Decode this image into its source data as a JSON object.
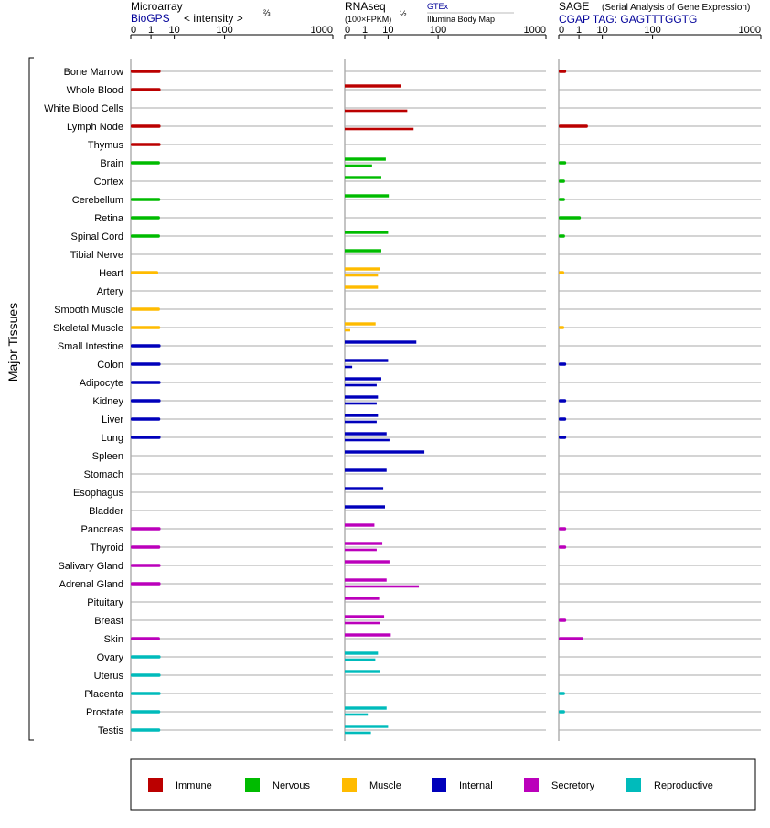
{
  "panels": {
    "microarray": {
      "title": "Microarray",
      "source": "BioGPS",
      "scale_label": "< intensity >",
      "scale_exponent": "⅔"
    },
    "rnaseq": {
      "title": "RNAseq",
      "scale_label": "(100×FPKM)",
      "scale_exponent": "½",
      "source_1": "GTEx",
      "source_2": "Illumina Body Map"
    },
    "sage": {
      "title": "SAGE",
      "subtitle": "(Serial Analysis of Gene Expression)",
      "tag": "CGAP TAG: GAGTTTGGTG"
    }
  },
  "y_axis_label": "Major Tissues",
  "colors": {
    "Immune": "#bb0000",
    "Nervous": "#00bb00",
    "Muscle": "#ffbb00",
    "Internal": "#0000bb",
    "Secretory": "#bb00bb",
    "Reproductive": "#00bbbb"
  },
  "legend": [
    "Immune",
    "Nervous",
    "Muscle",
    "Internal",
    "Secretory",
    "Reproductive"
  ],
  "chart_data": {
    "type": "bar",
    "orientation": "horizontal",
    "x_scale": "power",
    "x_ticks": [
      "0",
      "1",
      "10",
      "100",
      "1000"
    ],
    "xlim": [
      0,
      1000
    ],
    "tissues": [
      {
        "name": "Bone Marrow",
        "group": "Immune",
        "microarray": 3.2,
        "gtex": null,
        "ibm": null,
        "sage": 0.05
      },
      {
        "name": "Whole Blood",
        "group": "Immune",
        "microarray": 3.2,
        "gtex": 22,
        "ibm": null,
        "sage": null
      },
      {
        "name": "White Blood Cells",
        "group": "Immune",
        "microarray": null,
        "gtex": null,
        "ibm": 30,
        "sage": null
      },
      {
        "name": "Lymph Node",
        "group": "Immune",
        "microarray": 3.2,
        "gtex": null,
        "ibm": 40,
        "sage": 3
      },
      {
        "name": "Thymus",
        "group": "Immune",
        "microarray": 3.2,
        "gtex": null,
        "ibm": null,
        "sage": null
      },
      {
        "name": "Brain",
        "group": "Nervous",
        "microarray": 3.0,
        "gtex": 8.5,
        "ibm": 2.5,
        "sage": 0.05
      },
      {
        "name": "Cortex",
        "group": "Nervous",
        "microarray": null,
        "gtex": 6,
        "ibm": null,
        "sage": 0.03
      },
      {
        "name": "Cerebellum",
        "group": "Nervous",
        "microarray": 3.1,
        "gtex": 10.5,
        "ibm": null,
        "sage": 0.03
      },
      {
        "name": "Retina",
        "group": "Nervous",
        "microarray": 3.0,
        "gtex": null,
        "ibm": null,
        "sage": 1.3
      },
      {
        "name": "Spinal Cord",
        "group": "Nervous",
        "microarray": 3.0,
        "gtex": 10,
        "ibm": null,
        "sage": 0.03
      },
      {
        "name": "Tibial Nerve",
        "group": "Nervous",
        "microarray": null,
        "gtex": 6,
        "ibm": null,
        "sage": null
      },
      {
        "name": "Heart",
        "group": "Muscle",
        "microarray": 2.5,
        "gtex": 5.5,
        "ibm": 4.5,
        "sage": 0.02
      },
      {
        "name": "Artery",
        "group": "Muscle",
        "microarray": null,
        "gtex": 4.5,
        "ibm": null,
        "sage": null
      },
      {
        "name": "Smooth Muscle",
        "group": "Muscle",
        "microarray": 3.0,
        "gtex": null,
        "ibm": null,
        "sage": null
      },
      {
        "name": "Skeletal Muscle",
        "group": "Muscle",
        "microarray": 3.1,
        "gtex": 3.6,
        "ibm": 0.02,
        "sage": 0.02
      },
      {
        "name": "Small Intestine",
        "group": "Internal",
        "microarray": 3.2,
        "gtex": 45,
        "ibm": null,
        "sage": null
      },
      {
        "name": "Colon",
        "group": "Internal",
        "microarray": 3.2,
        "gtex": 10,
        "ibm": 0.05,
        "sage": 0.05
      },
      {
        "name": "Adipocyte",
        "group": "Internal",
        "microarray": 3.2,
        "gtex": 6,
        "ibm": 4,
        "sage": null
      },
      {
        "name": "Kidney",
        "group": "Internal",
        "microarray": 3.2,
        "gtex": 4.5,
        "ibm": 4,
        "sage": 0.05
      },
      {
        "name": "Liver",
        "group": "Internal",
        "microarray": 3.1,
        "gtex": 4.5,
        "ibm": 4,
        "sage": 0.05
      },
      {
        "name": "Lung",
        "group": "Internal",
        "microarray": 3.2,
        "gtex": 9,
        "ibm": 11,
        "sage": 0.05
      },
      {
        "name": "Spleen",
        "group": "Internal",
        "microarray": null,
        "gtex": 62,
        "ibm": null,
        "sage": null
      },
      {
        "name": "Stomach",
        "group": "Internal",
        "microarray": null,
        "gtex": 9,
        "ibm": null,
        "sage": null
      },
      {
        "name": "Esophagus",
        "group": "Internal",
        "microarray": null,
        "gtex": 7,
        "ibm": null,
        "sage": null
      },
      {
        "name": "Bladder",
        "group": "Internal",
        "microarray": null,
        "gtex": 8,
        "ibm": null,
        "sage": null
      },
      {
        "name": "Pancreas",
        "group": "Secretory",
        "microarray": 3.2,
        "gtex": 3.2,
        "ibm": null,
        "sage": 0.05
      },
      {
        "name": "Thyroid",
        "group": "Secretory",
        "microarray": 3.1,
        "gtex": 6.5,
        "ibm": 4,
        "sage": 0.05
      },
      {
        "name": "Salivary Gland",
        "group": "Secretory",
        "microarray": 3.2,
        "gtex": 11,
        "ibm": null,
        "sage": null
      },
      {
        "name": "Adrenal Gland",
        "group": "Secretory",
        "microarray": 3.2,
        "gtex": 9,
        "ibm": 50,
        "sage": null
      },
      {
        "name": "Pituitary",
        "group": "Secretory",
        "microarray": null,
        "gtex": 5,
        "ibm": null,
        "sage": null
      },
      {
        "name": "Breast",
        "group": "Secretory",
        "microarray": null,
        "gtex": 7.5,
        "ibm": 5.5,
        "sage": 0.05
      },
      {
        "name": "Skin",
        "group": "Secretory",
        "microarray": 3.0,
        "gtex": 12,
        "ibm": null,
        "sage": 1.8
      },
      {
        "name": "Ovary",
        "group": "Reproductive",
        "microarray": 3.2,
        "gtex": 4.5,
        "ibm": 3.5,
        "sage": null
      },
      {
        "name": "Uterus",
        "group": "Reproductive",
        "microarray": 3.2,
        "gtex": 5.5,
        "ibm": null,
        "sage": null
      },
      {
        "name": "Placenta",
        "group": "Reproductive",
        "microarray": 3.2,
        "gtex": null,
        "ibm": null,
        "sage": 0.03
      },
      {
        "name": "Prostate",
        "group": "Reproductive",
        "microarray": 3.1,
        "gtex": 9,
        "ibm": 1.5,
        "sage": 0.03
      },
      {
        "name": "Testis",
        "group": "Reproductive",
        "microarray": 3.1,
        "gtex": 10,
        "ibm": 2.2,
        "sage": null
      }
    ]
  }
}
